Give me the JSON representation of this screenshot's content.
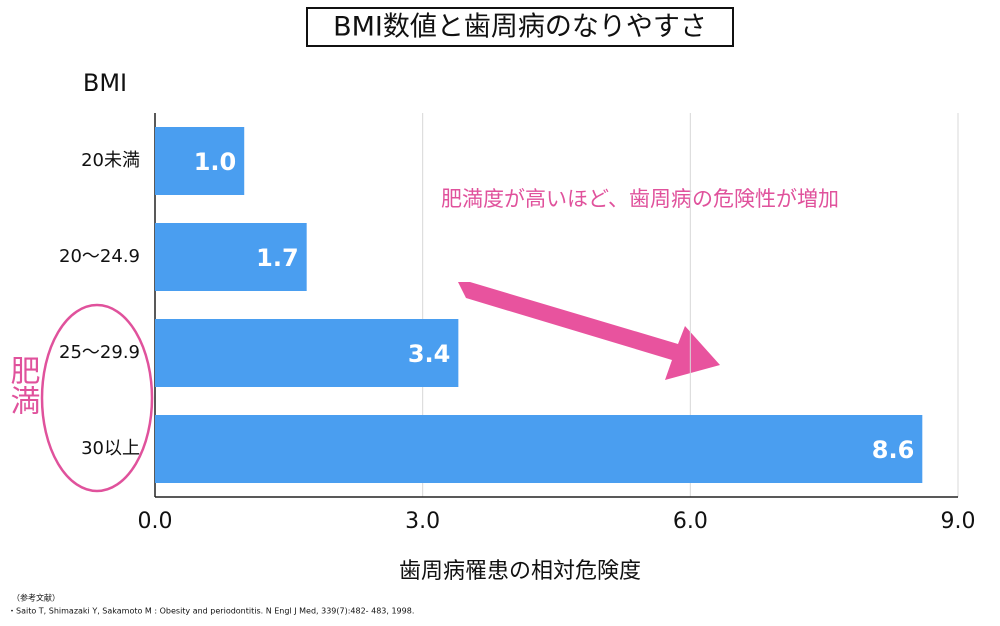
{
  "chart_data": {
    "type": "bar",
    "orientation": "horizontal",
    "title": "BMI数値と歯周病のなりやすさ",
    "y_label": "BMI",
    "x_label": "歯周病罹患の相対危険度",
    "categories": [
      "20未満",
      "20〜24.9",
      "25〜29.9",
      "30以上"
    ],
    "values": [
      1.0,
      1.7,
      3.4,
      8.6
    ],
    "value_labels": [
      "1.0",
      "1.7",
      "3.4",
      "8.6"
    ],
    "color": "#4a9ef0",
    "xlim": [
      0,
      9
    ],
    "xticks": [
      {
        "value": 0,
        "label": "0.0"
      },
      {
        "value": 3,
        "label": "3.0"
      },
      {
        "value": 6,
        "label": "6.0"
      },
      {
        "value": 9,
        "label": "9.0"
      }
    ],
    "grid": true,
    "annotations": [
      "肥満度が高いほど、歯周病の危険性が増加",
      "肥満"
    ],
    "references": {
      "heading": "（参考文献）",
      "items": [
        "・Saito T, Shimazaki Y, Sakamoto M : Obesity and periodontitis. N Engl J Med,  339(7):482- 483,  1998."
      ]
    }
  }
}
